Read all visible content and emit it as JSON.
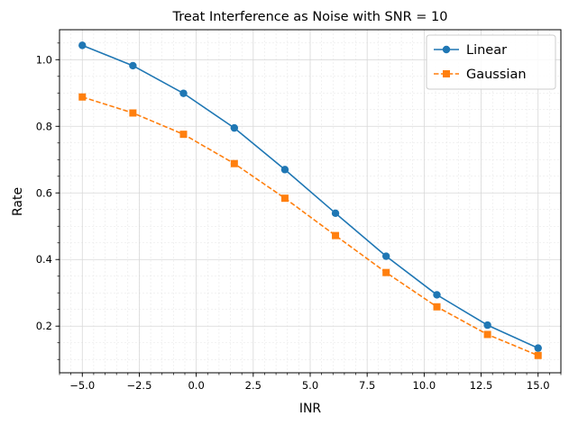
{
  "chart_data": {
    "type": "line",
    "title": "Treat Interference as Noise with SNR = 10",
    "xlabel": "INR",
    "ylabel": "Rate",
    "xlim": [
      -6.0,
      16.0
    ],
    "ylim": [
      0.06,
      1.09
    ],
    "xticks": [
      -5.0,
      -2.5,
      0.0,
      2.5,
      5.0,
      7.5,
      10.0,
      12.5,
      15.0
    ],
    "xtick_labels": [
      "−5.0",
      "−2.5",
      "0.0",
      "2.5",
      "5.0",
      "7.5",
      "10.0",
      "12.5",
      "15.0"
    ],
    "yticks": [
      0.2,
      0.4,
      0.6,
      0.8,
      1.0
    ],
    "ytick_labels": [
      "0.2",
      "0.4",
      "0.6",
      "0.8",
      "1.0"
    ],
    "grid": true,
    "minor_grid": true,
    "legend_position": "top-right",
    "x": [
      -5.0,
      -2.78,
      -0.56,
      1.67,
      3.89,
      6.11,
      8.33,
      10.56,
      12.78,
      15.0
    ],
    "series": [
      {
        "name": "Linear",
        "values": [
          1.043,
          0.982,
          0.899,
          0.795,
          0.67,
          0.539,
          0.41,
          0.294,
          0.203,
          0.134
        ],
        "color": "#1f77b4",
        "line_style": "solid",
        "marker": "circle"
      },
      {
        "name": "Gaussian",
        "values": [
          0.888,
          0.84,
          0.776,
          0.688,
          0.584,
          0.472,
          0.361,
          0.258,
          0.175,
          0.112
        ],
        "color": "#ff7f0e",
        "line_style": "dashed",
        "marker": "square"
      }
    ]
  }
}
